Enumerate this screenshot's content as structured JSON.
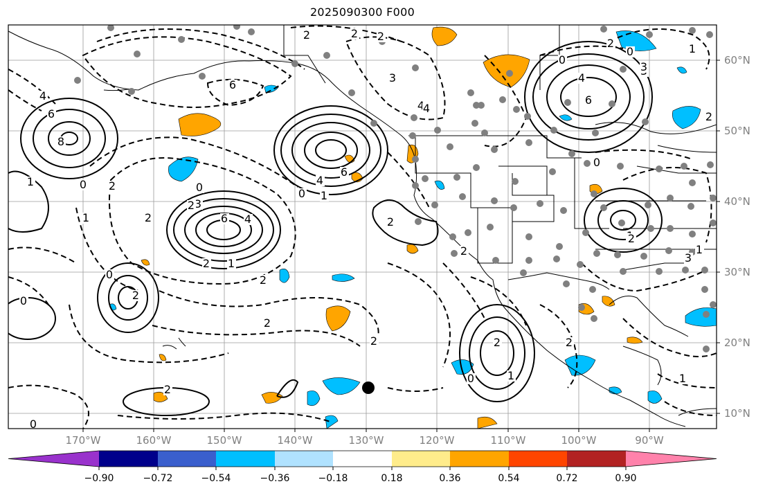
{
  "title": "2025090300 F000",
  "lat_labels": [
    "60°N",
    "50°N",
    "40°N",
    "30°N",
    "20°N",
    "10°N"
  ],
  "lon_labels": [
    "170°W",
    "160°W",
    "150°W",
    "140°W",
    "130°W",
    "120°W",
    "110°W",
    "100°W",
    "90°W"
  ],
  "contour_labels": [
    "2",
    "2",
    "2",
    "3",
    "4",
    "0",
    "2",
    "1",
    "4",
    "6",
    "8",
    "1",
    "0",
    "2",
    "6",
    "3",
    "4",
    "6",
    "4",
    "0",
    "1",
    "6",
    "3",
    "2",
    "6",
    "4",
    "2",
    "1",
    "2",
    "0",
    "2",
    "0",
    "2",
    "0",
    "2",
    "2",
    "2",
    "1",
    "0",
    "2",
    "2",
    "1",
    "0",
    "2",
    "2",
    "0",
    "3",
    "4",
    "3",
    "1",
    "1",
    "2",
    "0",
    "1",
    "2"
  ],
  "colorbar": {
    "tick_labels": [
      "−0.90",
      "−0.72",
      "−0.54",
      "−0.36",
      "−0.18",
      "0.18",
      "0.36",
      "0.54",
      "0.72",
      "0.90"
    ],
    "colors": [
      "#9932cc",
      "#00008b",
      "#3a5fcd",
      "#00bfff",
      "#b0e2ff",
      "#ffffff",
      "#ffec8b",
      "#ffa500",
      "#ff4500",
      "#b22222",
      "#ff82ab"
    ]
  }
}
